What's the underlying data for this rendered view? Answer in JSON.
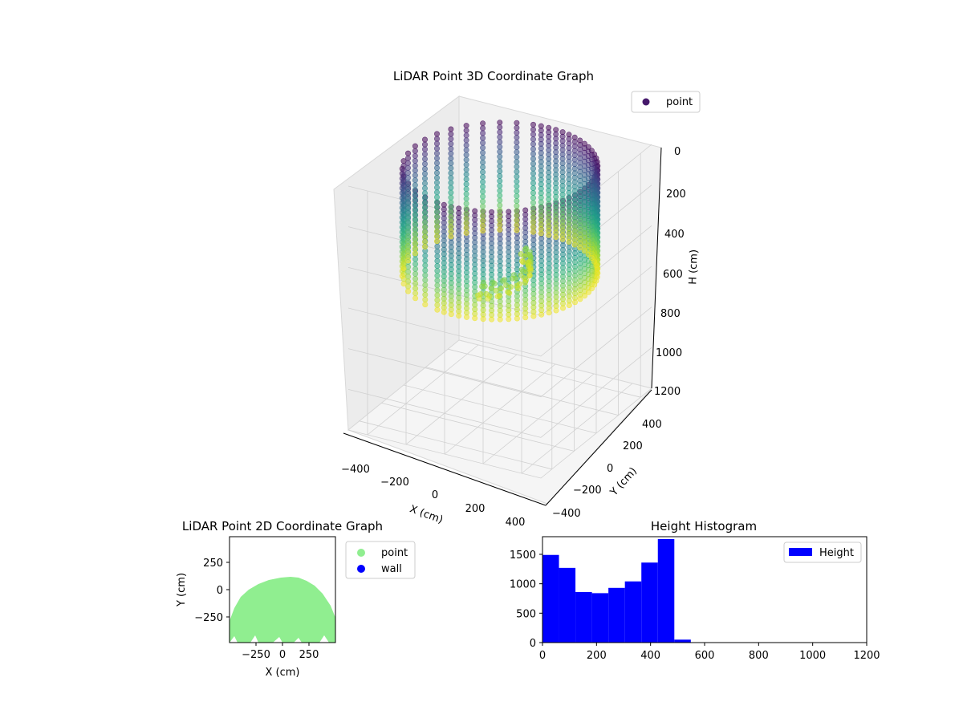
{
  "chart_data": [
    {
      "type": "scatter",
      "projection": "3d",
      "title": "LiDAR Point 3D Coordinate Graph",
      "xlabel": "X (cm)",
      "ylabel": "Y (cm)",
      "zlabel": "H (cm)",
      "xlim": [
        -500,
        500
      ],
      "ylim": [
        -500,
        500
      ],
      "zlim": [
        1200,
        0
      ],
      "z_inverted": true,
      "xticks": [
        "−400",
        "−200",
        "0",
        "200",
        "400"
      ],
      "yticks": [
        "−400",
        "−200",
        "0",
        "200",
        "400"
      ],
      "zticks": [
        "0",
        "200",
        "400",
        "600",
        "800",
        "1000",
        "1200"
      ],
      "colormap": "viridis",
      "grid": true,
      "legend": {
        "position": "top-right",
        "entries": [
          {
            "label": "point",
            "color": "#46196b"
          }
        ]
      },
      "description_of_points": "points arranged on a cylindrical wall of radius about 450 cm, heights about 0 to 550 cm, mostly in the back half (y > -50 cm) with a sparse front arc of vertical columns"
    },
    {
      "type": "scatter",
      "title": "LiDAR Point 2D Coordinate Graph",
      "xlabel": "X (cm)",
      "ylabel": "Y (cm)",
      "xlim": [
        -500,
        500
      ],
      "ylim": [
        -500,
        500
      ],
      "xticks": [
        "−250",
        "0",
        "250"
      ],
      "yticks": [
        "250",
        "0",
        "−250"
      ],
      "legend": {
        "position": "outside-right",
        "entries": [
          {
            "label": "point",
            "color": "#90ee90"
          },
          {
            "label": "wall",
            "color": "#0000ff"
          }
        ]
      }
    },
    {
      "type": "bar",
      "subtype": "histogram",
      "title": "Height Histogram",
      "xlim": [
        0,
        1200
      ],
      "ylim": [
        0,
        1800
      ],
      "xticks": [
        "0",
        "200",
        "400",
        "600",
        "800",
        "1000",
        "1200"
      ],
      "yticks": [
        "0",
        "500",
        "1000",
        "1500"
      ],
      "bin_edges": [
        0,
        61,
        122,
        183,
        244,
        305,
        366,
        427,
        488,
        549
      ],
      "values": [
        1490,
        1270,
        860,
        840,
        930,
        1040,
        1360,
        1760,
        50
      ],
      "color": "#0000ff",
      "legend": {
        "position": "top-right",
        "entries": [
          {
            "label": "Height",
            "color": "#0000ff"
          }
        ]
      }
    }
  ]
}
